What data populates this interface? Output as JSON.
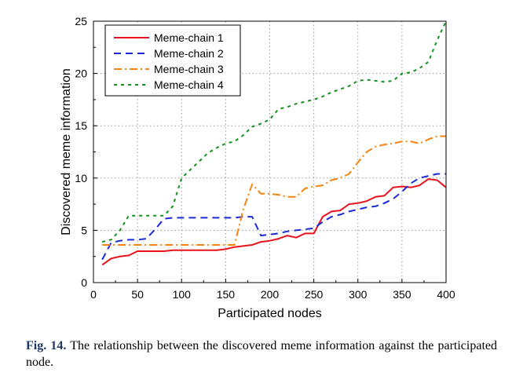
{
  "chart_data": {
    "type": "line",
    "xlabel": "Participated nodes",
    "ylabel": "Discovered meme information",
    "xlim": [
      0,
      400
    ],
    "ylim": [
      0,
      25
    ],
    "xticks": [
      0,
      50,
      100,
      150,
      200,
      250,
      300,
      350,
      400
    ],
    "yticks": [
      0,
      5,
      10,
      15,
      20,
      25
    ],
    "grid": true,
    "legend_position": "top-left",
    "series": [
      {
        "name": "Meme-chain 1",
        "color": "#e8121c",
        "dash": "solid",
        "x": [
          10,
          20,
          30,
          40,
          50,
          60,
          70,
          80,
          90,
          100,
          110,
          120,
          130,
          140,
          150,
          160,
          170,
          180,
          190,
          200,
          210,
          220,
          230,
          240,
          250,
          260,
          270,
          280,
          290,
          300,
          310,
          320,
          330,
          340,
          350,
          360,
          370,
          380,
          390,
          400
        ],
        "y": [
          1.7,
          2.3,
          2.5,
          2.6,
          3.0,
          3.0,
          3.0,
          3.0,
          3.1,
          3.1,
          3.1,
          3.1,
          3.1,
          3.1,
          3.2,
          3.4,
          3.5,
          3.6,
          3.9,
          4.0,
          4.2,
          4.5,
          4.3,
          4.7,
          4.7,
          6.3,
          6.8,
          6.9,
          7.5,
          7.6,
          7.8,
          8.2,
          8.3,
          9.1,
          9.2,
          9.1,
          9.3,
          9.9,
          9.8,
          9.1
        ]
      },
      {
        "name": "Meme-chain 2",
        "color": "#1b2bd6",
        "dash": "dash",
        "x": [
          10,
          20,
          30,
          40,
          50,
          60,
          70,
          80,
          90,
          100,
          110,
          120,
          130,
          140,
          150,
          160,
          170,
          180,
          190,
          200,
          210,
          220,
          230,
          240,
          250,
          260,
          270,
          280,
          290,
          300,
          310,
          320,
          330,
          340,
          350,
          360,
          370,
          380,
          390,
          400
        ],
        "y": [
          2.2,
          3.8,
          4.0,
          4.1,
          4.1,
          4.2,
          5.1,
          6.1,
          6.2,
          6.2,
          6.2,
          6.2,
          6.2,
          6.2,
          6.2,
          6.2,
          6.3,
          6.3,
          4.5,
          4.6,
          4.7,
          4.9,
          5.0,
          5.1,
          5.2,
          5.8,
          6.3,
          6.5,
          6.8,
          7.0,
          7.2,
          7.3,
          7.6,
          8.0,
          8.7,
          9.5,
          10.0,
          10.2,
          10.4,
          10.4
        ]
      },
      {
        "name": "Meme-chain 3",
        "color": "#f5830f",
        "dash": "dashdot",
        "x": [
          10,
          20,
          30,
          40,
          50,
          60,
          70,
          80,
          90,
          100,
          110,
          120,
          130,
          140,
          150,
          160,
          170,
          180,
          190,
          200,
          210,
          220,
          230,
          240,
          250,
          260,
          270,
          280,
          290,
          300,
          310,
          320,
          330,
          340,
          350,
          360,
          370,
          380,
          390,
          400
        ],
        "y": [
          3.6,
          3.6,
          3.6,
          3.6,
          3.6,
          3.6,
          3.6,
          3.6,
          3.6,
          3.6,
          3.6,
          3.6,
          3.6,
          3.6,
          3.6,
          3.6,
          7.0,
          9.4,
          8.5,
          8.5,
          8.4,
          8.2,
          8.2,
          9.0,
          9.2,
          9.3,
          9.8,
          10.0,
          10.4,
          11.5,
          12.5,
          13.0,
          13.2,
          13.3,
          13.5,
          13.5,
          13.3,
          13.7,
          14.0,
          14.0
        ]
      },
      {
        "name": "Meme-chain 4",
        "color": "#13901c",
        "dash": "shortdash",
        "x": [
          10,
          20,
          30,
          40,
          50,
          60,
          70,
          80,
          90,
          100,
          110,
          120,
          130,
          140,
          150,
          160,
          170,
          180,
          190,
          200,
          210,
          220,
          230,
          240,
          250,
          260,
          270,
          280,
          290,
          300,
          310,
          320,
          330,
          340,
          350,
          360,
          370,
          380,
          390,
          400
        ],
        "y": [
          3.9,
          4.1,
          5.0,
          6.4,
          6.4,
          6.4,
          6.4,
          6.4,
          7.3,
          10.0,
          10.8,
          11.6,
          12.4,
          12.9,
          13.3,
          13.5,
          14.1,
          14.9,
          15.2,
          15.6,
          16.6,
          16.8,
          17.1,
          17.3,
          17.5,
          17.8,
          18.2,
          18.5,
          18.8,
          19.3,
          19.4,
          19.3,
          19.2,
          19.3,
          20.0,
          20.1,
          20.5,
          21.1,
          23.2,
          25.0
        ]
      }
    ]
  },
  "caption": {
    "label": "Fig. 14.",
    "text": "The relationship between the discovered meme information against the participated node."
  }
}
